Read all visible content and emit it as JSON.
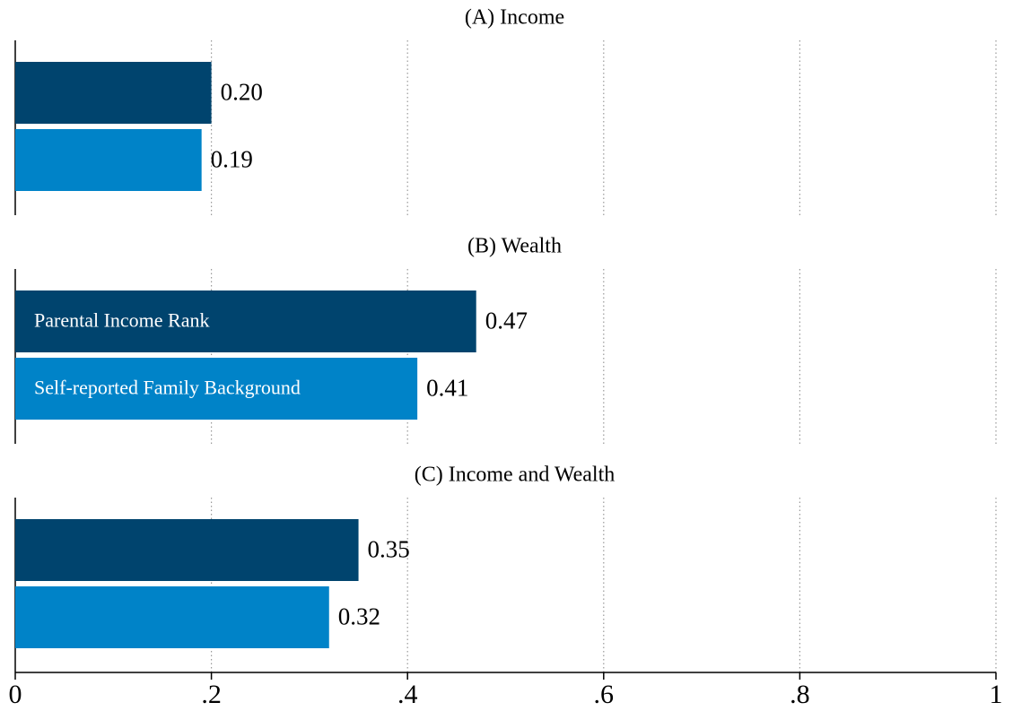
{
  "chart_data": [
    {
      "type": "bar",
      "orientation": "horizontal",
      "title": "(A) Income",
      "series": [
        {
          "color": "#00446e",
          "values": [
            0.2
          ],
          "value_labels": [
            "0.20"
          ]
        },
        {
          "color": "#0083c8",
          "values": [
            0.19
          ],
          "value_labels": [
            "0.19"
          ]
        }
      ]
    },
    {
      "type": "bar",
      "orientation": "horizontal",
      "title": "(B) Wealth",
      "series": [
        {
          "name": "Parental Income Rank",
          "color": "#00446e",
          "values": [
            0.47
          ],
          "value_labels": [
            "0.47"
          ]
        },
        {
          "name": "Self-reported Family Background",
          "color": "#0083c8",
          "values": [
            0.41
          ],
          "value_labels": [
            "0.41"
          ]
        }
      ]
    },
    {
      "type": "bar",
      "orientation": "horizontal",
      "title": "(C) Income and Wealth",
      "series": [
        {
          "color": "#00446e",
          "values": [
            0.35
          ],
          "value_labels": [
            "0.35"
          ]
        },
        {
          "color": "#0083c8",
          "values": [
            0.32
          ],
          "value_labels": [
            "0.32"
          ]
        }
      ],
      "xlim": [
        0,
        1
      ],
      "xticks": [
        0,
        {
          "value": 0.2,
          "label": ".2"
        },
        {
          "value": 0.4,
          "label": ".4"
        },
        {
          "value": 0.6,
          "label": ".6"
        },
        {
          "value": 0.8,
          "label": ".8"
        },
        1
      ],
      "grid": true
    }
  ]
}
